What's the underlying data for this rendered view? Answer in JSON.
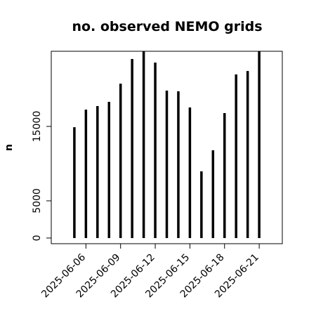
{
  "chart_data": {
    "type": "bar",
    "title": "no. observed NEMO grids",
    "ylabel": "n",
    "x": [
      "2025-06-05",
      "2025-06-06",
      "2025-06-07",
      "2025-06-08",
      "2025-06-09",
      "2025-06-10",
      "2025-06-11",
      "2025-06-12",
      "2025-06-13",
      "2025-06-14",
      "2025-06-15",
      "2025-06-16",
      "2025-06-17",
      "2025-06-18",
      "2025-06-19",
      "2025-06-20",
      "2025-06-21"
    ],
    "values": [
      14900,
      17260,
      17740,
      18300,
      20750,
      24060,
      25100,
      23580,
      19810,
      19720,
      17550,
      8960,
      11790,
      16790,
      21980,
      22450,
      25100
    ],
    "color": "#000000",
    "xlim": [
      "2025-06-03",
      "2025-06-23"
    ],
    "xticks": [
      "2025-06-06",
      "2025-06-09",
      "2025-06-12",
      "2025-06-15",
      "2025-06-18",
      "2025-06-21"
    ],
    "ylim": [
      -760,
      25100
    ],
    "yticks": [
      0,
      5000,
      15000
    ],
    "grid": false
  }
}
